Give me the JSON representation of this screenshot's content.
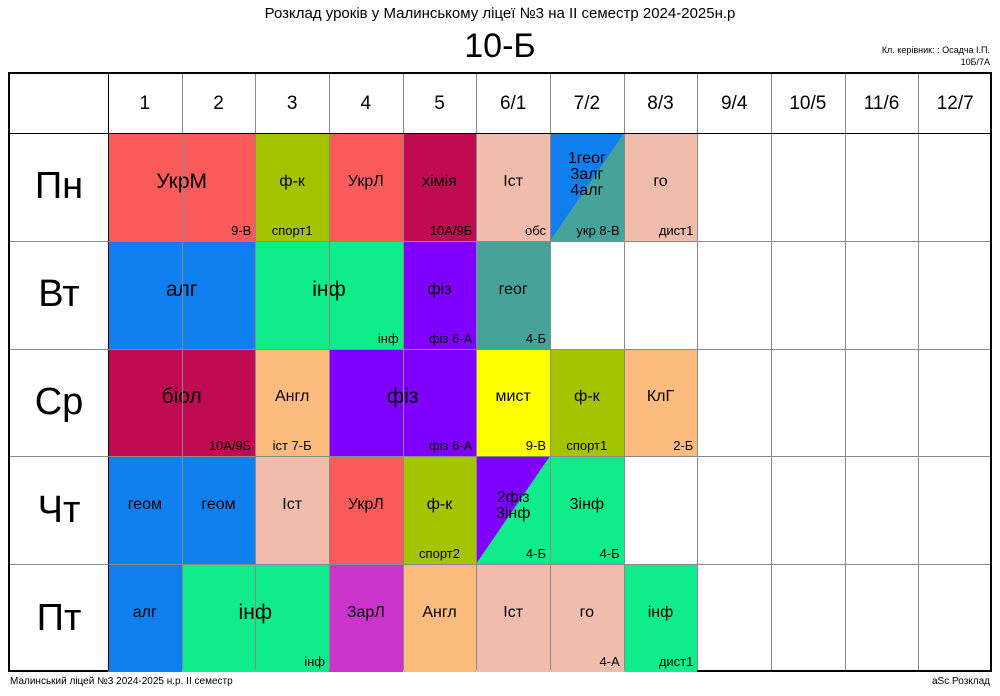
{
  "header": {
    "title": "Розклад уроків у Малинському ліцеї №3 на ІІ семестр 2024-2025н.р",
    "class_name": "10-Б",
    "teacher_label": "Кл. керівник: : Осадча І.П.",
    "room": "10Б/7А"
  },
  "periods": [
    "1",
    "2",
    "3",
    "4",
    "5",
    "6/1",
    "7/2",
    "8/3",
    "9/4",
    "10/5",
    "11/6",
    "12/7"
  ],
  "days": [
    "Пн",
    "Вт",
    "Ср",
    "Чт",
    "Пт"
  ],
  "lessons": {
    "mon_1": {
      "subject": "УкрМ",
      "room": "9-В",
      "color": "#f95b5b"
    },
    "mon_3": {
      "subject": "ф-к",
      "group": "спорт1",
      "color": "#a4c400"
    },
    "mon_4": {
      "subject": "УкрЛ",
      "color": "#f95b5b"
    },
    "mon_5": {
      "subject": "хімія",
      "room": "10А/9Б",
      "color": "#c00a52"
    },
    "mon_6": {
      "subject": "Іст",
      "room": "обс",
      "color": "#f0bcab"
    },
    "mon_7": {
      "line1": "1геог",
      "line2": "3алг",
      "line3": "4алг",
      "room": "укр 8-В",
      "color_a": "#0f7ff0",
      "color_b": "#46a39c"
    },
    "mon_8": {
      "subject": "го",
      "room": "дист1",
      "color": "#f0bcab"
    },
    "tue_1": {
      "subject": "алг",
      "color": "#0f7ff0"
    },
    "tue_3": {
      "subject": "інф",
      "room": "інф",
      "color": "#0fec8a"
    },
    "tue_5": {
      "subject": "фіз",
      "room": "фіз 6-А",
      "color": "#8000ff"
    },
    "tue_6": {
      "subject": "геог",
      "room": "4-Б",
      "color": "#46a39c"
    },
    "wed_1": {
      "subject": "біол",
      "room": "10А/9Б",
      "color": "#c00a52"
    },
    "wed_3": {
      "subject": "Англ",
      "group": "іст 7-Б",
      "color": "#fdbb7d"
    },
    "wed_4": {
      "subject": "фіз",
      "room": "фіз 6-А",
      "color": "#8000ff"
    },
    "wed_6": {
      "subject": "мист",
      "room": "9-В",
      "color": "#ffff00"
    },
    "wed_7": {
      "subject": "ф-к",
      "group": "спорт1",
      "color": "#a4c400"
    },
    "wed_8": {
      "subject": "КлГ",
      "room": "2-Б",
      "color": "#fdbb7d"
    },
    "thu_1": {
      "subject": "геом",
      "color": "#0f7ff0"
    },
    "thu_2": {
      "subject": "геом",
      "color": "#0f7ff0"
    },
    "thu_3": {
      "subject": "Іст",
      "color": "#f0bcab"
    },
    "thu_4": {
      "subject": "УкрЛ",
      "color": "#f95b5b"
    },
    "thu_5": {
      "subject": "ф-к",
      "group": "спорт2",
      "color": "#a4c400"
    },
    "thu_6": {
      "line1": "2фіз",
      "line2": "3інф",
      "room": "4-Б",
      "color_a": "#8000ff",
      "color_b": "#0fec8a"
    },
    "thu_7": {
      "subject": "3інф",
      "room": "4-Б",
      "color": "#0fec8a"
    },
    "fri_1": {
      "subject": "алг",
      "color": "#0f7ff0"
    },
    "fri_2": {
      "subject": "інф",
      "room": "інф",
      "color": "#0fec8a"
    },
    "fri_4": {
      "subject": "ЗарЛ",
      "color": "#cc33cc"
    },
    "fri_5": {
      "subject": "Англ",
      "color": "#fdbb7d"
    },
    "fri_6": {
      "subject": "Іст",
      "color": "#f0bcab"
    },
    "fri_7": {
      "subject": "го",
      "room": "4-А",
      "color": "#f0bcab"
    },
    "fri_8": {
      "subject": "інф",
      "room": "дист1",
      "color": "#0fec8a"
    }
  },
  "footer": {
    "left": "Малинський ліцей №3  2024-2025 н.р. ІІ семестр",
    "right": "aSc Розклад"
  }
}
